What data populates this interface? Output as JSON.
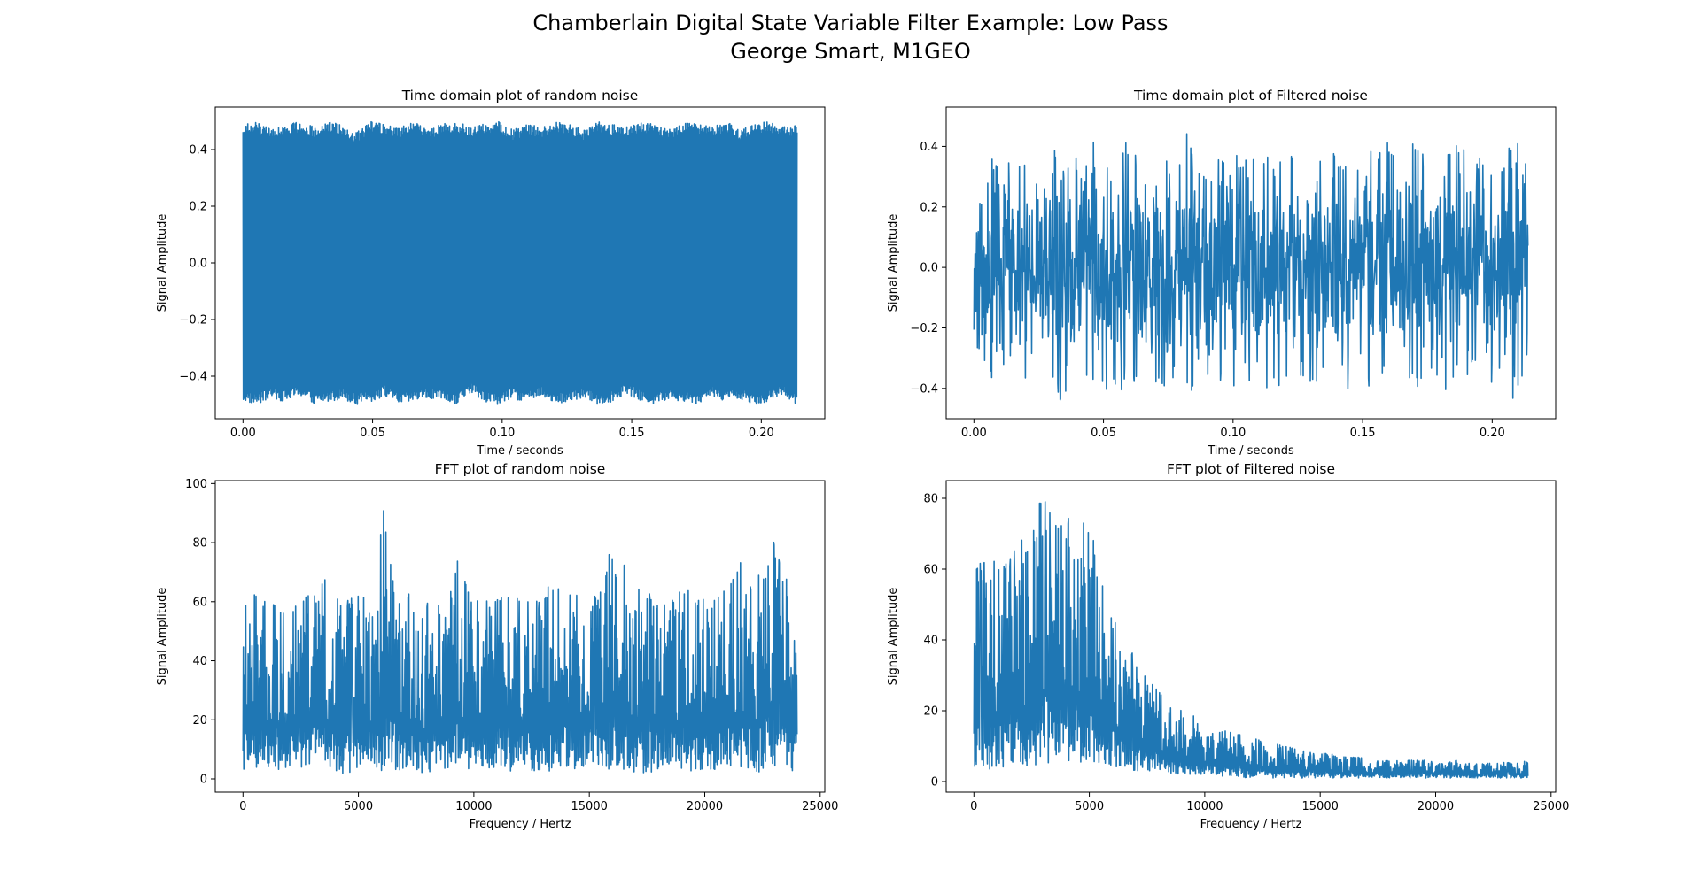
{
  "figure": {
    "title_line1": "Chamberlain Digital State Variable Filter Example: Low Pass",
    "title_line2": "George Smart, M1GEO"
  },
  "colors": {
    "series": "#1f77b4",
    "axes": "#000000",
    "background": "#ffffff"
  },
  "chart_data": [
    {
      "type": "line",
      "title": "Time domain plot of random noise",
      "xlabel": "Time / seconds",
      "ylabel": "Signal Amplitude",
      "xlim": [
        -0.0107,
        0.2245
      ],
      "ylim": [
        -0.55,
        0.55
      ],
      "xticks": [
        0.0,
        0.05,
        0.1,
        0.15,
        0.2
      ],
      "xtick_labels": [
        "0.00",
        "0.05",
        "0.10",
        "0.15",
        "0.20"
      ],
      "yticks": [
        -0.4,
        -0.2,
        0.0,
        0.2,
        0.4
      ],
      "ytick_labels": [
        "−0.4",
        "−0.2",
        "0.0",
        "0.2",
        "0.4"
      ],
      "envelope": {
        "x_start": 0.0,
        "x_end": 0.2138,
        "lower": [
          -0.49,
          -0.5,
          -0.48,
          -0.49,
          -0.47,
          -0.5,
          -0.49,
          -0.48,
          -0.5,
          -0.49,
          -0.47,
          -0.5,
          -0.49,
          -0.48,
          -0.49,
          -0.5,
          -0.46,
          -0.49,
          -0.5,
          -0.48,
          -0.49,
          -0.47,
          -0.5,
          -0.49,
          -0.48,
          -0.5,
          -0.49,
          -0.46,
          -0.49,
          -0.5,
          -0.48,
          -0.49,
          -0.5,
          -0.47,
          -0.49,
          -0.48,
          -0.5,
          -0.49,
          -0.47,
          -0.5
        ],
        "upper": [
          0.49,
          0.5,
          0.47,
          0.49,
          0.5,
          0.48,
          0.5,
          0.49,
          0.46,
          0.5,
          0.49,
          0.48,
          0.5,
          0.47,
          0.49,
          0.5,
          0.48,
          0.49,
          0.5,
          0.47,
          0.49,
          0.48,
          0.5,
          0.49,
          0.47,
          0.5,
          0.49,
          0.48,
          0.5,
          0.49,
          0.47,
          0.5,
          0.49,
          0.48,
          0.5,
          0.47,
          0.49,
          0.5,
          0.48,
          0.49
        ]
      }
    },
    {
      "type": "line",
      "title": "Time domain plot of Filtered noise",
      "xlabel": "Time / seconds",
      "ylabel": "Signal Amplitude",
      "xlim": [
        -0.0107,
        0.2245
      ],
      "ylim": [
        -0.5,
        0.53
      ],
      "xticks": [
        0.0,
        0.05,
        0.1,
        0.15,
        0.2
      ],
      "xtick_labels": [
        "0.00",
        "0.05",
        "0.10",
        "0.15",
        "0.20"
      ],
      "yticks": [
        -0.4,
        -0.2,
        0.0,
        0.2,
        0.4
      ],
      "ytick_labels": [
        "−0.4",
        "−0.2",
        "0.0",
        "0.2",
        "0.4"
      ],
      "envelope": {
        "x_start": 0.0,
        "x_end": 0.2138,
        "lower": [
          -0.28,
          -0.42,
          -0.36,
          -0.38,
          -0.4,
          -0.3,
          -0.44,
          -0.45,
          -0.38,
          -0.4,
          -0.44,
          -0.37,
          -0.42,
          -0.4,
          -0.45,
          -0.39,
          -0.47,
          -0.36,
          -0.42,
          -0.4,
          -0.41,
          -0.39,
          -0.43,
          -0.37,
          -0.4,
          -0.35,
          -0.45,
          -0.38,
          -0.4,
          -0.35,
          -0.38,
          -0.42,
          -0.34,
          -0.42,
          -0.38,
          -0.4,
          -0.43,
          -0.36,
          -0.44,
          -0.32
        ],
        "upper": [
          0.26,
          0.38,
          0.35,
          0.4,
          0.32,
          0.38,
          0.45,
          0.4,
          0.53,
          0.36,
          0.41,
          0.44,
          0.35,
          0.38,
          0.33,
          0.45,
          0.36,
          0.4,
          0.38,
          0.36,
          0.42,
          0.35,
          0.41,
          0.38,
          0.33,
          0.45,
          0.34,
          0.37,
          0.39,
          0.42,
          0.36,
          0.45,
          0.35,
          0.38,
          0.41,
          0.37,
          0.36,
          0.34,
          0.43,
          0.41
        ]
      }
    },
    {
      "type": "line",
      "title": "FFT plot of random noise",
      "xlabel": "Frequency / Hertz",
      "ylabel": "Signal Amplitude",
      "xlim": [
        -1200,
        25200
      ],
      "ylim": [
        -4.5,
        101
      ],
      "xticks": [
        0,
        5000,
        10000,
        15000,
        20000,
        25000
      ],
      "xtick_labels": [
        "0",
        "5000",
        "10000",
        "15000",
        "20000",
        "25000"
      ],
      "yticks": [
        0,
        20,
        40,
        60,
        80,
        100
      ],
      "ytick_labels": [
        "0",
        "20",
        "40",
        "60",
        "80",
        "100"
      ],
      "envelope": {
        "x_start": 0,
        "x_end": 24000,
        "lower": [
          2,
          3,
          4,
          2,
          3,
          4,
          3,
          1,
          3,
          4,
          2,
          3,
          3,
          1,
          4,
          2,
          3,
          3,
          4,
          2,
          3,
          1,
          4,
          3,
          2,
          4,
          3,
          3,
          1,
          2,
          4,
          3,
          2,
          3,
          4,
          3,
          2,
          3,
          4,
          2
        ],
        "upper": [
          65,
          62,
          60,
          58,
          64,
          62,
          70,
          60,
          63,
          62,
          96,
          60,
          64,
          62,
          58,
          76,
          62,
          60,
          63,
          62,
          60,
          61,
          72,
          63,
          65,
          62,
          84,
          70,
          64,
          62,
          60,
          65,
          63,
          61,
          66,
          74,
          62,
          86,
          70,
          67
        ]
      }
    },
    {
      "type": "line",
      "title": "FFT plot of Filtered noise",
      "xlabel": "Frequency / Hertz",
      "ylabel": "Signal Amplitude",
      "xlim": [
        -1200,
        25200
      ],
      "ylim": [
        -3,
        85
      ],
      "xticks": [
        0,
        5000,
        10000,
        15000,
        20000,
        25000
      ],
      "xtick_labels": [
        "0",
        "5000",
        "10000",
        "15000",
        "20000",
        "25000"
      ],
      "yticks": [
        0,
        20,
        40,
        60,
        80
      ],
      "ytick_labels": [
        "0",
        "20",
        "40",
        "60",
        "80"
      ],
      "envelope": {
        "x_start": 0,
        "x_end": 24000,
        "lower": [
          1,
          3,
          4,
          5,
          4,
          5,
          5,
          6,
          4,
          5,
          4,
          3,
          3,
          3,
          2,
          2,
          2,
          2,
          1,
          1,
          1,
          1,
          1,
          1,
          1,
          1,
          1,
          1,
          1,
          1,
          1,
          1,
          1,
          1,
          1,
          1,
          1,
          1,
          1,
          1
        ],
        "upper": [
          60,
          64,
          61,
          67,
          75,
          82,
          72,
          78,
          74,
          60,
          45,
          38,
          30,
          26,
          22,
          20,
          17,
          15,
          14,
          13,
          12,
          11,
          10,
          9,
          8,
          8,
          7,
          7,
          6,
          6,
          6,
          6,
          6,
          5,
          6,
          5,
          5,
          6,
          5,
          6
        ]
      }
    }
  ]
}
